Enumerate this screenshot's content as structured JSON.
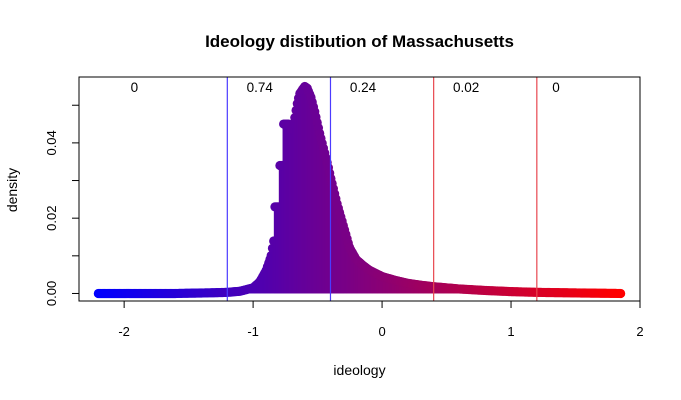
{
  "chart_data": {
    "type": "scatter",
    "title": "Ideology distibution of Massachusetts",
    "xlabel": "ideology",
    "ylabel": "density",
    "xlim": [
      -2.35,
      2.0
    ],
    "ylim": [
      -0.002,
      0.0575
    ],
    "x_ticks": [
      "-2",
      "-1",
      "0",
      "1",
      "2"
    ],
    "y_ticks": [
      "0.00",
      "0.02",
      "0.04"
    ],
    "grid": false,
    "legend": "none",
    "color_scale": {
      "low": "#0000ff",
      "high": "#ff0000",
      "range": [
        -2.2,
        1.85
      ]
    },
    "cutoff_color_left": "#4b3bff",
    "cutoff_color_right": "#e8474f",
    "cutoffs": [
      {
        "x": -1.2,
        "color": "#4b3bff"
      },
      {
        "x": -0.4,
        "color": "#4b3bff"
      },
      {
        "x": 0.4,
        "color": "#e8474f"
      },
      {
        "x": 1.2,
        "color": "#e8474f"
      }
    ],
    "region_shares": [
      {
        "x": -1.95,
        "label": "0"
      },
      {
        "x": -1.05,
        "label": "0.74"
      },
      {
        "x": -0.25,
        "label": "0.24"
      },
      {
        "x": 0.55,
        "label": "0.02"
      },
      {
        "x": 1.32,
        "label": "0"
      }
    ],
    "density_points": [
      [
        -2.2,
        0.0
      ],
      [
        -1.6,
        0.0
      ],
      [
        -1.3,
        0.0002
      ],
      [
        -1.2,
        0.0003
      ],
      [
        -1.1,
        0.0006
      ],
      [
        -1.0,
        0.0015
      ],
      [
        -0.95,
        0.003
      ],
      [
        -0.9,
        0.006
      ],
      [
        -0.86,
        0.01
      ],
      [
        -0.84,
        0.014
      ],
      [
        -0.835,
        0.023
      ],
      [
        -0.8,
        0.023
      ],
      [
        -0.795,
        0.034
      ],
      [
        -0.77,
        0.034
      ],
      [
        -0.765,
        0.045
      ],
      [
        -0.72,
        0.045
      ],
      [
        -0.7,
        0.043
      ],
      [
        -0.68,
        0.046
      ],
      [
        -0.66,
        0.05
      ],
      [
        -0.64,
        0.053
      ],
      [
        -0.62,
        0.054
      ],
      [
        -0.6,
        0.055
      ],
      [
        -0.58,
        0.0545
      ],
      [
        -0.55,
        0.052
      ],
      [
        -0.52,
        0.048
      ],
      [
        -0.5,
        0.045
      ],
      [
        -0.48,
        0.042
      ],
      [
        -0.45,
        0.038
      ],
      [
        -0.42,
        0.034
      ],
      [
        -0.4,
        0.031
      ],
      [
        -0.35,
        0.024
      ],
      [
        -0.3,
        0.018
      ],
      [
        -0.25,
        0.012
      ],
      [
        -0.2,
        0.009
      ],
      [
        -0.15,
        0.0075
      ],
      [
        -0.1,
        0.0062
      ],
      [
        0.0,
        0.0045
      ],
      [
        0.1,
        0.0035
      ],
      [
        0.2,
        0.0027
      ],
      [
        0.3,
        0.0022
      ],
      [
        0.4,
        0.0018
      ],
      [
        0.6,
        0.0012
      ],
      [
        0.8,
        0.0008
      ],
      [
        1.0,
        0.0005
      ],
      [
        1.2,
        0.0003
      ],
      [
        1.5,
        0.00015
      ],
      [
        1.85,
        0.0
      ]
    ]
  }
}
